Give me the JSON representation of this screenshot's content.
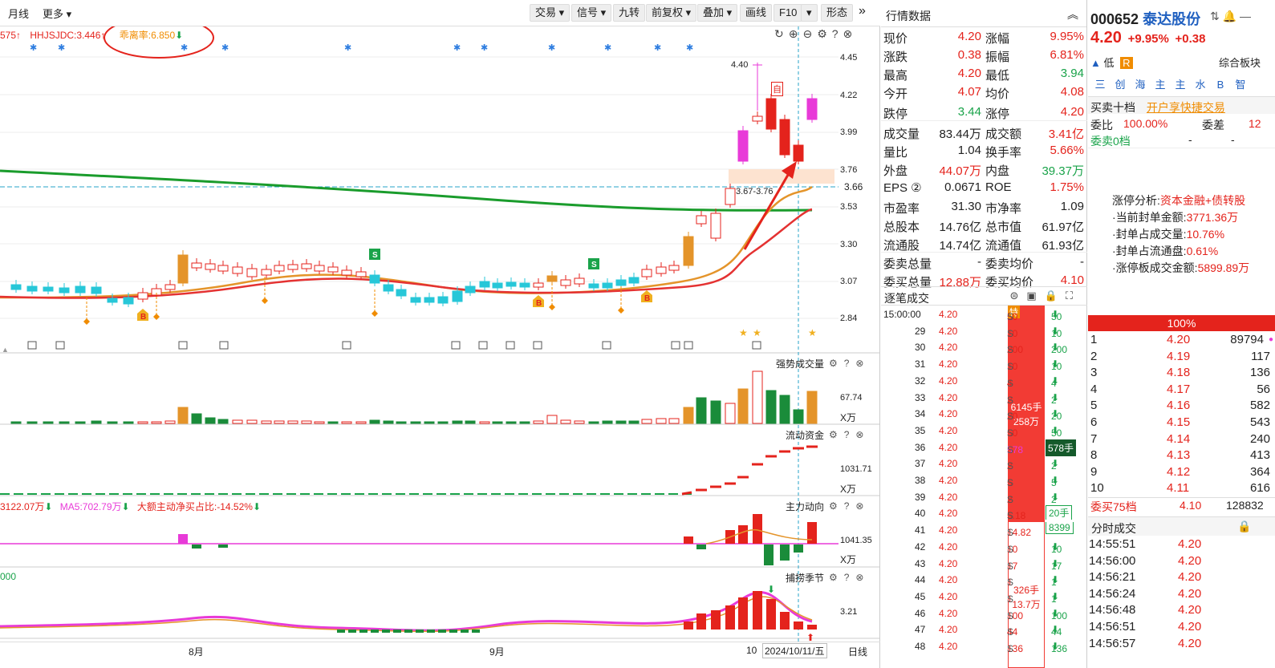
{
  "toolbar": {
    "monthly": "月线",
    "more": "更多",
    "trade": "交易",
    "signal": "信号",
    "nine": "九转",
    "fq": "前复权",
    "overlay": "叠加",
    "draw": "画线",
    "f10": "F10",
    "shape": "形态"
  },
  "indicators": {
    "v1": "575",
    "v2": "HHJSJDC:3.446",
    "v3": "乖离率:6.850"
  },
  "price_ticks": [
    "4.45",
    "4.22",
    "3.99",
    "3.76",
    "3.66",
    "3.53",
    "3.30",
    "3.07",
    "2.84"
  ],
  "price_annotations": {
    "high": "4.40",
    "zone": "3.67-3.76",
    "self": "自"
  },
  "panels": {
    "vol": {
      "title": "强势成交量",
      "val": "67.74",
      "unit": "X万"
    },
    "flow": {
      "title": "流动资金",
      "val": "1031.71",
      "unit": "X万"
    },
    "main": {
      "title": "主力动向",
      "val": "1041.35",
      "unit": "X万",
      "ind1": "3122.07万",
      "ind2": "MA5:702.79万",
      "ind3": "大额主动净买占比:-14.52%"
    },
    "season": {
      "title": "捕捞季节",
      "val": "3.21",
      "left": "000"
    }
  },
  "xaxis": {
    "aug": "8月",
    "sep": "9月",
    "oct": "10",
    "date": "2024/10/11/五",
    "period": "日线"
  },
  "quote": {
    "title": "行情数据",
    "rows": [
      [
        "现价",
        "4.20",
        "涨幅",
        "9.95%"
      ],
      [
        "涨跌",
        "0.38",
        "振幅",
        "6.81%"
      ],
      [
        "最高",
        "4.20",
        "最低",
        "3.94"
      ],
      [
        "今开",
        "4.07",
        "均价",
        "4.08"
      ],
      [
        "跌停",
        "3.44",
        "涨停",
        "4.20"
      ],
      [
        "成交量",
        "83.44万",
        "成交额",
        "3.41亿"
      ],
      [
        "量比",
        "1.04",
        "换手率",
        "5.66%"
      ],
      [
        "外盘",
        "44.07万",
        "内盘",
        "39.37万"
      ],
      [
        "EPS ②",
        "0.0671",
        "ROE",
        "1.75%"
      ],
      [
        "市盈率",
        "31.30",
        "市净率",
        "1.09"
      ],
      [
        "总股本",
        "14.76亿",
        "总市值",
        "61.97亿"
      ],
      [
        "流通股",
        "14.74亿",
        "流通值",
        "61.93亿"
      ],
      [
        "委卖总量",
        "-",
        "委卖均价",
        "-"
      ],
      [
        "委买总量",
        "12.88万",
        "委买均价",
        "4.10"
      ]
    ],
    "trades_title": "逐笔成交"
  },
  "trades": [
    [
      "15:00:00",
      "4.20",
      "50",
      "50"
    ],
    [
      "29",
      "4.20",
      "10",
      "10"
    ],
    [
      "30",
      "4.20",
      "200",
      "200"
    ],
    [
      "31",
      "4.20",
      "10",
      "10"
    ],
    [
      "32",
      "4.20",
      "4",
      "4"
    ],
    [
      "33",
      "4.20",
      "2",
      "2"
    ],
    [
      "34",
      "4.20",
      "20",
      "20"
    ],
    [
      "35",
      "4.20",
      "50",
      "50"
    ],
    [
      "36",
      "4.20",
      "578",
      "578手"
    ],
    [
      "37",
      "4.20",
      "2",
      "2"
    ],
    [
      "38",
      "4.20",
      "5",
      "5"
    ],
    [
      "39",
      "4.20",
      "2",
      "2"
    ],
    [
      "40",
      "4.20",
      "5.18",
      "20手"
    ],
    [
      "41",
      "4.20",
      "14.82",
      "8399"
    ],
    [
      "42",
      "4.20",
      "10",
      "10"
    ],
    [
      "43",
      "4.20",
      "17",
      "17"
    ],
    [
      "44",
      "4.20",
      "1",
      "1"
    ],
    [
      "45",
      "4.20",
      "1",
      "1"
    ],
    [
      "46",
      "4.20",
      "100",
      "100"
    ],
    [
      "47",
      "4.20",
      "44",
      "44"
    ],
    [
      "48",
      "4.20",
      "136",
      "136"
    ]
  ],
  "trade_labels": {
    "te": "特",
    "big1": "6145手",
    "big2": "258万",
    "sm1": "326手",
    "sm2": "13.7万"
  },
  "stock": {
    "code": "000652",
    "name": "泰达股份",
    "price": "4.20",
    "pct": "+9.95%",
    "chg": "+0.38",
    "risk": "低",
    "r": "R",
    "plate": "综合板块",
    "tabs": [
      "三",
      "创",
      "海",
      "主",
      "主",
      "水",
      "B",
      "智"
    ],
    "depth_title": "买卖十档",
    "open_acct": "开户享快捷交易",
    "wb_label": "委比",
    "wb": "100.00%",
    "wc_label": "委差",
    "wc": "12",
    "sell0": "委卖0档",
    "dash": "-",
    "zt_title": "涨停分析:",
    "zt_type": "资本金融+债转股",
    "zt1_l": "·当前封单金额:",
    "zt1": "3771.36万",
    "zt2_l": "·封单占成交量:",
    "zt2": "10.76%",
    "zt3_l": "·封单占流通盘:",
    "zt3": "0.61%",
    "zt4_l": "·涨停板成交金额:",
    "zt4": "5899.89万",
    "bar": "100%",
    "bids": [
      [
        "1",
        "4.20",
        "89794"
      ],
      [
        "2",
        "4.19",
        "117"
      ],
      [
        "3",
        "4.18",
        "136"
      ],
      [
        "4",
        "4.17",
        "56"
      ],
      [
        "5",
        "4.16",
        "582"
      ],
      [
        "6",
        "4.15",
        "543"
      ],
      [
        "7",
        "4.14",
        "240"
      ],
      [
        "8",
        "4.13",
        "413"
      ],
      [
        "9",
        "4.12",
        "364"
      ],
      [
        "10",
        "4.11",
        "616"
      ]
    ],
    "buy75": "委买75档",
    "buy75p": "4.10",
    "buy75v": "128832",
    "ticks_title": "分时成交",
    "ticks": [
      [
        "14:55:51",
        "4.20"
      ],
      [
        "14:56:00",
        "4.20"
      ],
      [
        "14:56:21",
        "4.20"
      ],
      [
        "14:56:24",
        "4.20"
      ],
      [
        "14:56:48",
        "4.20"
      ],
      [
        "14:56:51",
        "4.20"
      ],
      [
        "14:56:57",
        "4.20"
      ]
    ]
  },
  "colors": {
    "up": "#e4231c",
    "down": "#1aa34a",
    "cyan": "#27c7d8",
    "magenta": "#e83ad8",
    "orange": "#f08c00"
  }
}
